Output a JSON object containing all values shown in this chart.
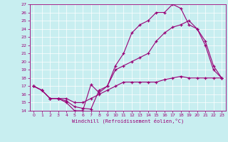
{
  "xlabel": "Windchill (Refroidissement éolien,°C)",
  "bg_color": "#c8eef0",
  "line_color": "#990077",
  "grid_color": "#ffffff",
  "xlim": [
    -0.5,
    23.5
  ],
  "ylim": [
    14,
    27
  ],
  "xticks": [
    0,
    1,
    2,
    3,
    4,
    5,
    6,
    7,
    8,
    9,
    10,
    11,
    12,
    13,
    14,
    15,
    16,
    17,
    18,
    19,
    20,
    21,
    22,
    23
  ],
  "yticks": [
    14,
    15,
    16,
    17,
    18,
    19,
    20,
    21,
    22,
    23,
    24,
    25,
    26,
    27
  ],
  "line1_x": [
    0,
    1,
    2,
    3,
    4,
    5,
    6,
    7,
    8,
    9,
    10,
    11,
    12,
    13,
    14,
    15,
    16,
    17,
    18,
    19,
    20,
    21,
    22,
    23
  ],
  "line1_y": [
    17.0,
    16.5,
    15.5,
    15.5,
    15.0,
    14.0,
    14.0,
    17.2,
    16.2,
    17.0,
    19.5,
    21.0,
    23.5,
    24.5,
    25.0,
    26.0,
    26.0,
    27.0,
    26.5,
    24.5,
    24.0,
    22.0,
    19.0,
    18.0
  ],
  "line2_x": [
    0,
    1,
    2,
    3,
    4,
    5,
    6,
    7,
    8,
    9,
    10,
    11,
    12,
    13,
    14,
    15,
    16,
    17,
    18,
    19,
    20,
    21,
    22,
    23
  ],
  "line2_y": [
    17.0,
    16.5,
    15.5,
    15.5,
    15.2,
    14.5,
    14.3,
    14.2,
    16.5,
    17.0,
    19.0,
    19.5,
    20.0,
    20.5,
    21.0,
    22.5,
    23.5,
    24.2,
    24.5,
    25.0,
    24.0,
    22.5,
    19.5,
    18.0
  ],
  "line3_x": [
    0,
    1,
    2,
    3,
    4,
    5,
    6,
    7,
    8,
    9,
    10,
    11,
    12,
    13,
    14,
    15,
    16,
    17,
    18,
    19,
    20,
    21,
    22,
    23
  ],
  "line3_y": [
    17.0,
    16.5,
    15.5,
    15.5,
    15.5,
    15.0,
    15.0,
    15.5,
    16.0,
    16.5,
    17.0,
    17.5,
    17.5,
    17.5,
    17.5,
    17.5,
    17.8,
    18.0,
    18.2,
    18.0,
    18.0,
    18.0,
    18.0,
    18.0
  ]
}
